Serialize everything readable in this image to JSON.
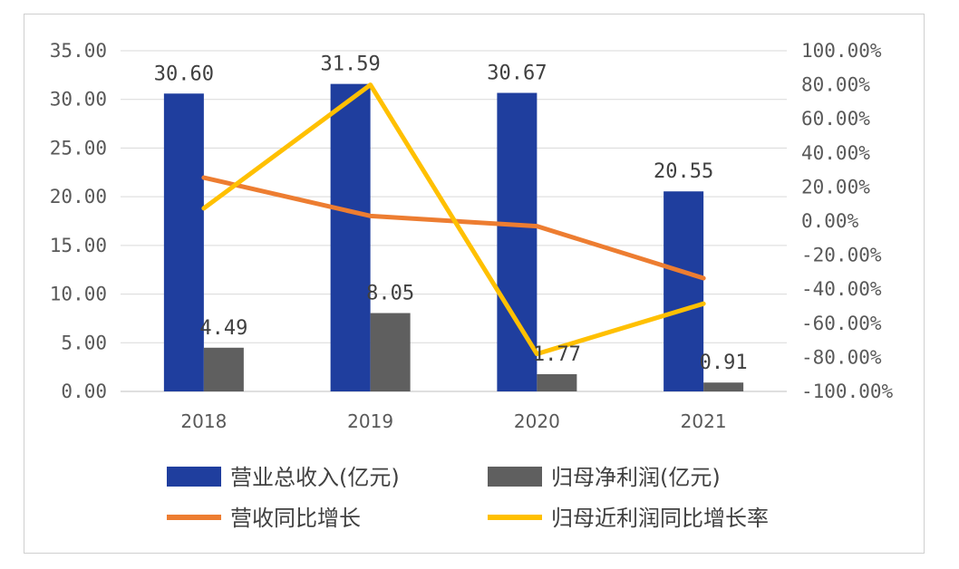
{
  "chart_data": {
    "type": "bar+line",
    "categories": [
      "2018",
      "2019",
      "2020",
      "2021"
    ],
    "left_axis": {
      "ylim": [
        0,
        35
      ],
      "ticks": [
        "0.00",
        "5.00",
        "10.00",
        "15.00",
        "20.00",
        "25.00",
        "30.00",
        "35.00"
      ]
    },
    "right_axis": {
      "ylim": [
        -100,
        100
      ],
      "ticks": [
        "-100.00%",
        "-80.00%",
        "-60.00%",
        "-40.00%",
        "-20.00%",
        "0.00%",
        "20.00%",
        "40.00%",
        "60.00%",
        "80.00%",
        "100.00%"
      ]
    },
    "series": [
      {
        "name": "营业总收入(亿元)",
        "type": "bar",
        "axis": "left",
        "color": "#1f3e9e",
        "values": [
          30.6,
          31.59,
          30.67,
          20.55
        ],
        "labels": [
          "30.60",
          "31.59",
          "30.67",
          "20.55"
        ]
      },
      {
        "name": "归母净利润(亿元)",
        "type": "bar",
        "axis": "left",
        "color": "#5f5f5f",
        "values": [
          4.49,
          8.05,
          1.77,
          0.91
        ],
        "labels": [
          "4.49",
          "8.05",
          "1.77",
          "0.91"
        ]
      },
      {
        "name": "营收同比增长",
        "type": "line",
        "axis": "right",
        "color": "#ed7d31",
        "values": [
          25.5,
          3.0,
          -3.0,
          -33.5
        ]
      },
      {
        "name": "归母近利润同比增长率",
        "type": "line",
        "axis": "right",
        "color": "#ffc000",
        "values": [
          7.5,
          80.0,
          -78.0,
          -48.5
        ]
      }
    ],
    "gridlines": true,
    "legend_position": "bottom"
  }
}
